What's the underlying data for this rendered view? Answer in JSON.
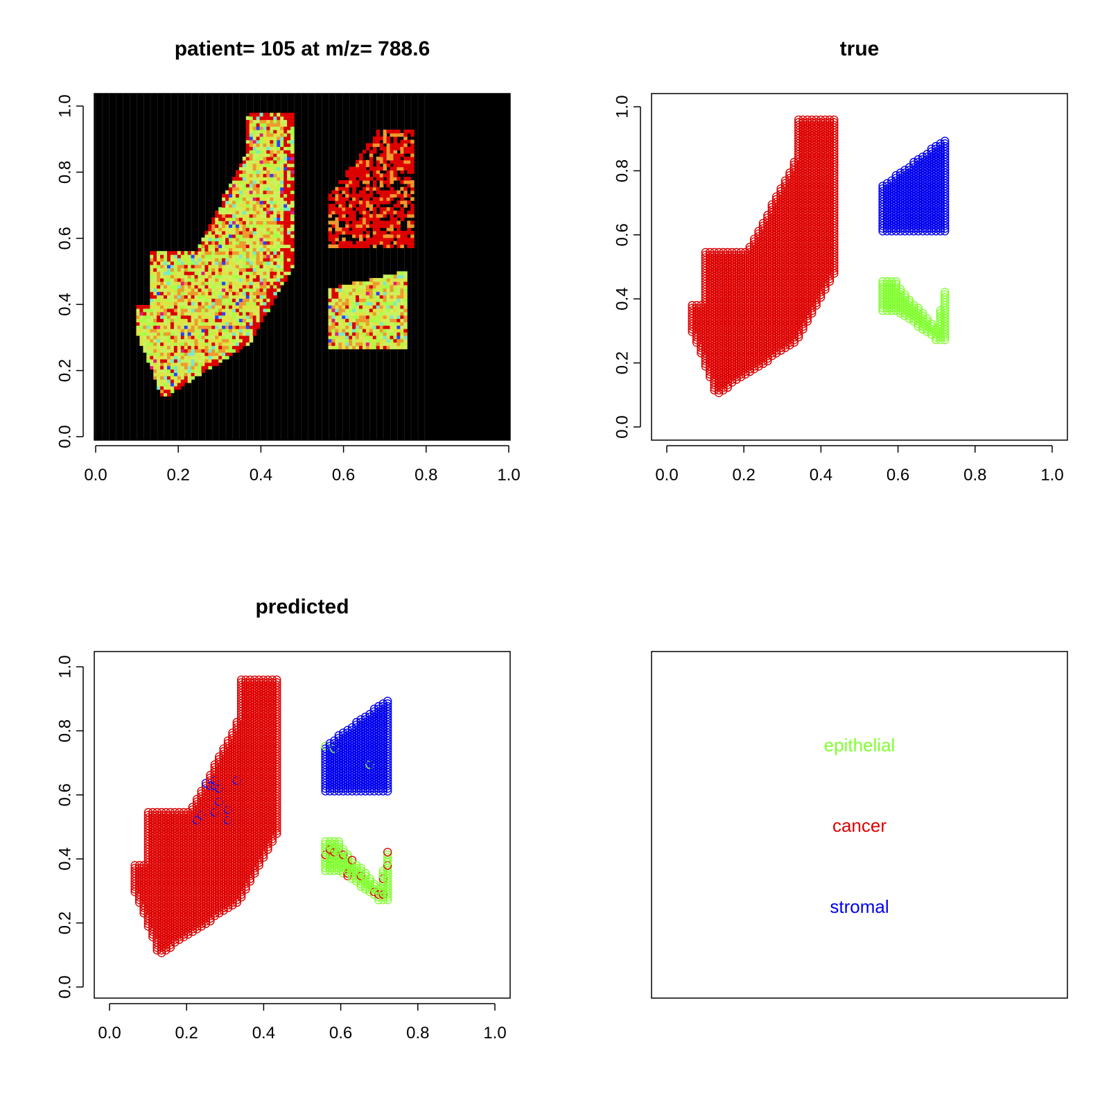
{
  "colors": {
    "epithelial": "#80ff2e",
    "cancer": "#dd0000",
    "stromal": "#0000ee",
    "background": "#000000"
  },
  "chart_data": [
    {
      "id": "intensity",
      "type": "heatmap",
      "title": "patient= 105  at m/z= 788.6",
      "xlim": [
        0,
        1
      ],
      "ylim": [
        0,
        1
      ],
      "xticks": [
        "0.0",
        "0.2",
        "0.4",
        "0.6",
        "0.8",
        "1.0"
      ],
      "yticks": [
        "0.0",
        "0.2",
        "0.4",
        "0.6",
        "0.8",
        "1.0"
      ],
      "image_extent": {
        "x": [
          0,
          0.8
        ],
        "y": [
          0,
          1
        ]
      },
      "palette": [
        "#dd0000",
        "#ee9a2e",
        "#dfe445",
        "#cdf05e",
        "#a8ff48",
        "#7de8c8",
        "#6fe8ff",
        "#3040ff",
        "#e0207a"
      ]
    },
    {
      "id": "true",
      "type": "scatter",
      "title": "true",
      "xlim": [
        0,
        1
      ],
      "ylim": [
        0,
        1
      ],
      "xticks": [
        "0.0",
        "0.2",
        "0.4",
        "0.6",
        "0.8",
        "1.0"
      ],
      "yticks": [
        "0.0",
        "0.2",
        "0.4",
        "0.6",
        "0.8",
        "1.0"
      ],
      "marker": "open-circle"
    },
    {
      "id": "predicted",
      "type": "scatter",
      "title": "predicted",
      "xlim": [
        0,
        1
      ],
      "ylim": [
        0,
        1
      ],
      "xticks": [
        "0.0",
        "0.2",
        "0.4",
        "0.6",
        "0.8",
        "1.0"
      ],
      "yticks": [
        "0.0",
        "0.2",
        "0.4",
        "0.6",
        "0.8",
        "1.0"
      ],
      "marker": "open-circle"
    },
    {
      "id": "legend",
      "type": "legend",
      "entries": [
        {
          "label": "epithelial",
          "class": "epithelial"
        },
        {
          "label": "cancer",
          "class": "cancer"
        },
        {
          "label": "stromal",
          "class": "stromal"
        }
      ]
    }
  ]
}
